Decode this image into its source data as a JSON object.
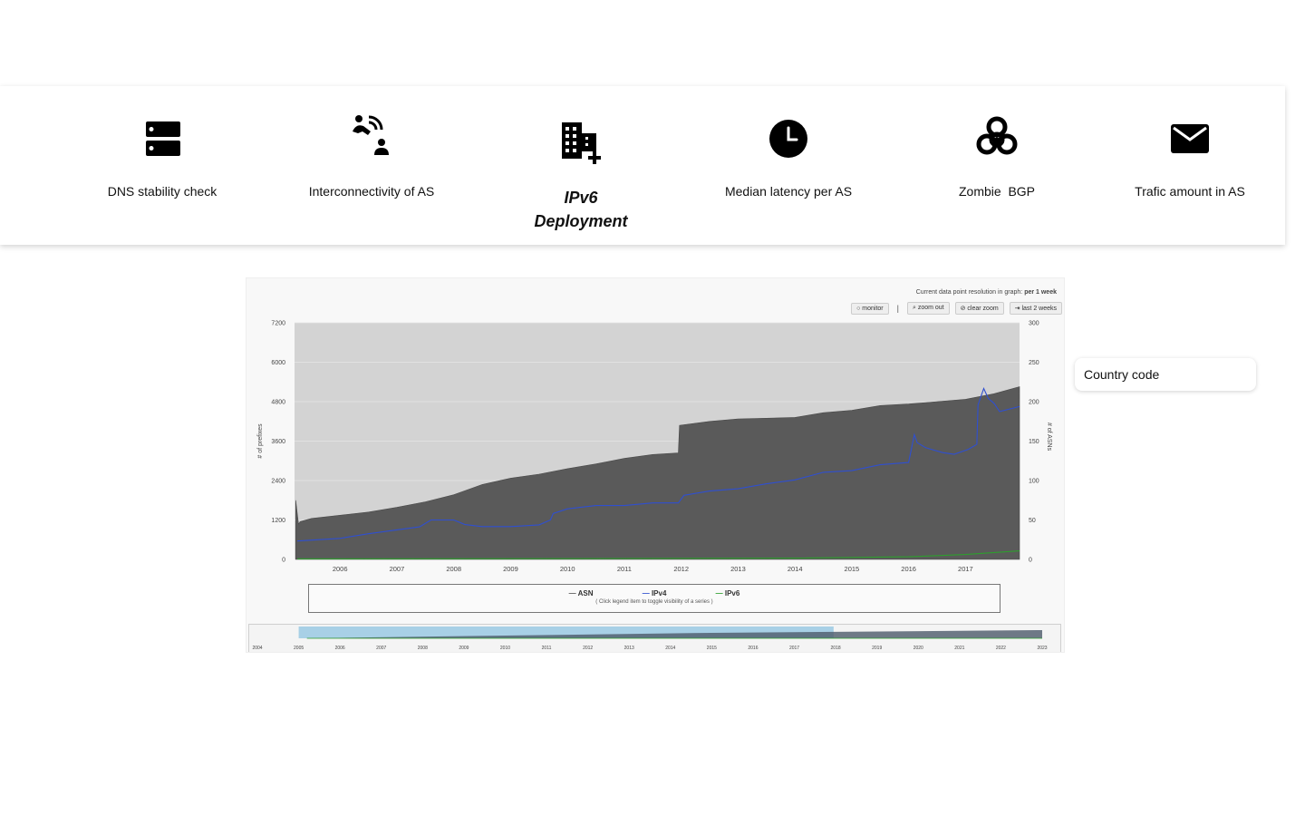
{
  "nav": {
    "items": [
      {
        "label": "DNS stability check",
        "icon": "server-icon"
      },
      {
        "label": "Interconnectivity of AS",
        "icon": "connection-icon"
      },
      {
        "label": "IPv6 Deployment",
        "icon": "building-add-icon"
      },
      {
        "label": "Median latency per AS",
        "icon": "clock-icon"
      },
      {
        "label": "Zombie  BGP",
        "icon": "biohazard-icon"
      },
      {
        "label": "Trafic amount in AS",
        "icon": "mail-icon"
      }
    ],
    "active": "IPv6 Deployment"
  },
  "graph": {
    "resolution_prefix": "Current data point resolution in graph: ",
    "resolution_value": "per 1 week",
    "buttons": {
      "monitor": "○ monitor",
      "zoom_out": "⌕ zoom out",
      "clear_zoom": "⊘ clear zoom",
      "last_2_weeks": "⇥ last 2 weeks"
    },
    "separator": "|",
    "legend_note": "( Click legend item to toggle visibility of a series )"
  },
  "country_field": {
    "label": "Country code"
  },
  "colors": {
    "asn": "#5a5a5a",
    "ipv4": "#2f4fd0",
    "ipv6": "#2e9e2e",
    "plot_bg": "#d3d3d3",
    "navigator_sel": "#a8d0e6"
  },
  "chart_data": {
    "type": "area",
    "title": "",
    "xlabel": "",
    "ylabel": "# of prefixes",
    "ylabel_right": "# of ASNs",
    "x_tick_labels": [
      "2006",
      "2007",
      "2008",
      "2009",
      "2010",
      "2011",
      "2012",
      "2013",
      "2014",
      "2015",
      "2016",
      "2017"
    ],
    "y_left_ticks": [
      0,
      1200,
      2400,
      3600,
      4800,
      6000,
      7200
    ],
    "y_right_ticks": [
      0,
      50,
      100,
      150,
      200,
      250,
      300
    ],
    "y_left_range": [
      0,
      7200
    ],
    "y_right_range": [
      0,
      300
    ],
    "x_range": [
      2005.2,
      2017.95
    ],
    "grid": true,
    "legend": "bottom",
    "series": [
      {
        "name": "ASN",
        "axis": "right",
        "type": "area",
        "x": [
          2005.22,
          2005.27,
          2005.3,
          2005.5,
          2006,
          2006.5,
          2007,
          2007.5,
          2008,
          2008.5,
          2009,
          2009.5,
          2010,
          2010.5,
          2011,
          2011.5,
          2011.95,
          2011.97,
          2012.5,
          2013,
          2013.5,
          2014,
          2014.5,
          2015,
          2015.5,
          2016,
          2016.5,
          2017,
          2017.5,
          2017.95
        ],
        "values": [
          75,
          45,
          48,
          52,
          56,
          60,
          66,
          73,
          82,
          95,
          103,
          108,
          115,
          121,
          128,
          133,
          135,
          170,
          175,
          178,
          179,
          180,
          186,
          189,
          195,
          197,
          200,
          203,
          210,
          219
        ]
      },
      {
        "name": "IPv4",
        "axis": "left",
        "type": "line",
        "x": [
          2005.25,
          2006,
          2006.5,
          2007,
          2007.4,
          2007.6,
          2008,
          2008.2,
          2008.5,
          2009,
          2009.5,
          2009.7,
          2009.75,
          2010,
          2010.5,
          2011,
          2011.5,
          2011.95,
          2012.05,
          2012.5,
          2013,
          2013.5,
          2014,
          2014.5,
          2015,
          2015.5,
          2016,
          2016.1,
          2016.15,
          2016.3,
          2016.4,
          2016.6,
          2016.8,
          2017.05,
          2017.2,
          2017.22,
          2017.32,
          2017.4,
          2017.5,
          2017.6,
          2017.95
        ],
        "values": [
          560,
          640,
          780,
          900,
          990,
          1200,
          1200,
          1060,
          1000,
          1000,
          1050,
          1200,
          1400,
          1540,
          1640,
          1640,
          1720,
          1720,
          1950,
          2080,
          2150,
          2300,
          2420,
          2650,
          2700,
          2880,
          2950,
          3800,
          3550,
          3400,
          3350,
          3250,
          3200,
          3350,
          3500,
          4700,
          5200,
          4900,
          4750,
          4500,
          4650
        ]
      },
      {
        "name": "IPv6",
        "axis": "left",
        "type": "line",
        "x": [
          2005.25,
          2010,
          2014,
          2016,
          2017,
          2017.95
        ],
        "values": [
          20,
          25,
          40,
          80,
          150,
          260
        ]
      }
    ]
  }
}
